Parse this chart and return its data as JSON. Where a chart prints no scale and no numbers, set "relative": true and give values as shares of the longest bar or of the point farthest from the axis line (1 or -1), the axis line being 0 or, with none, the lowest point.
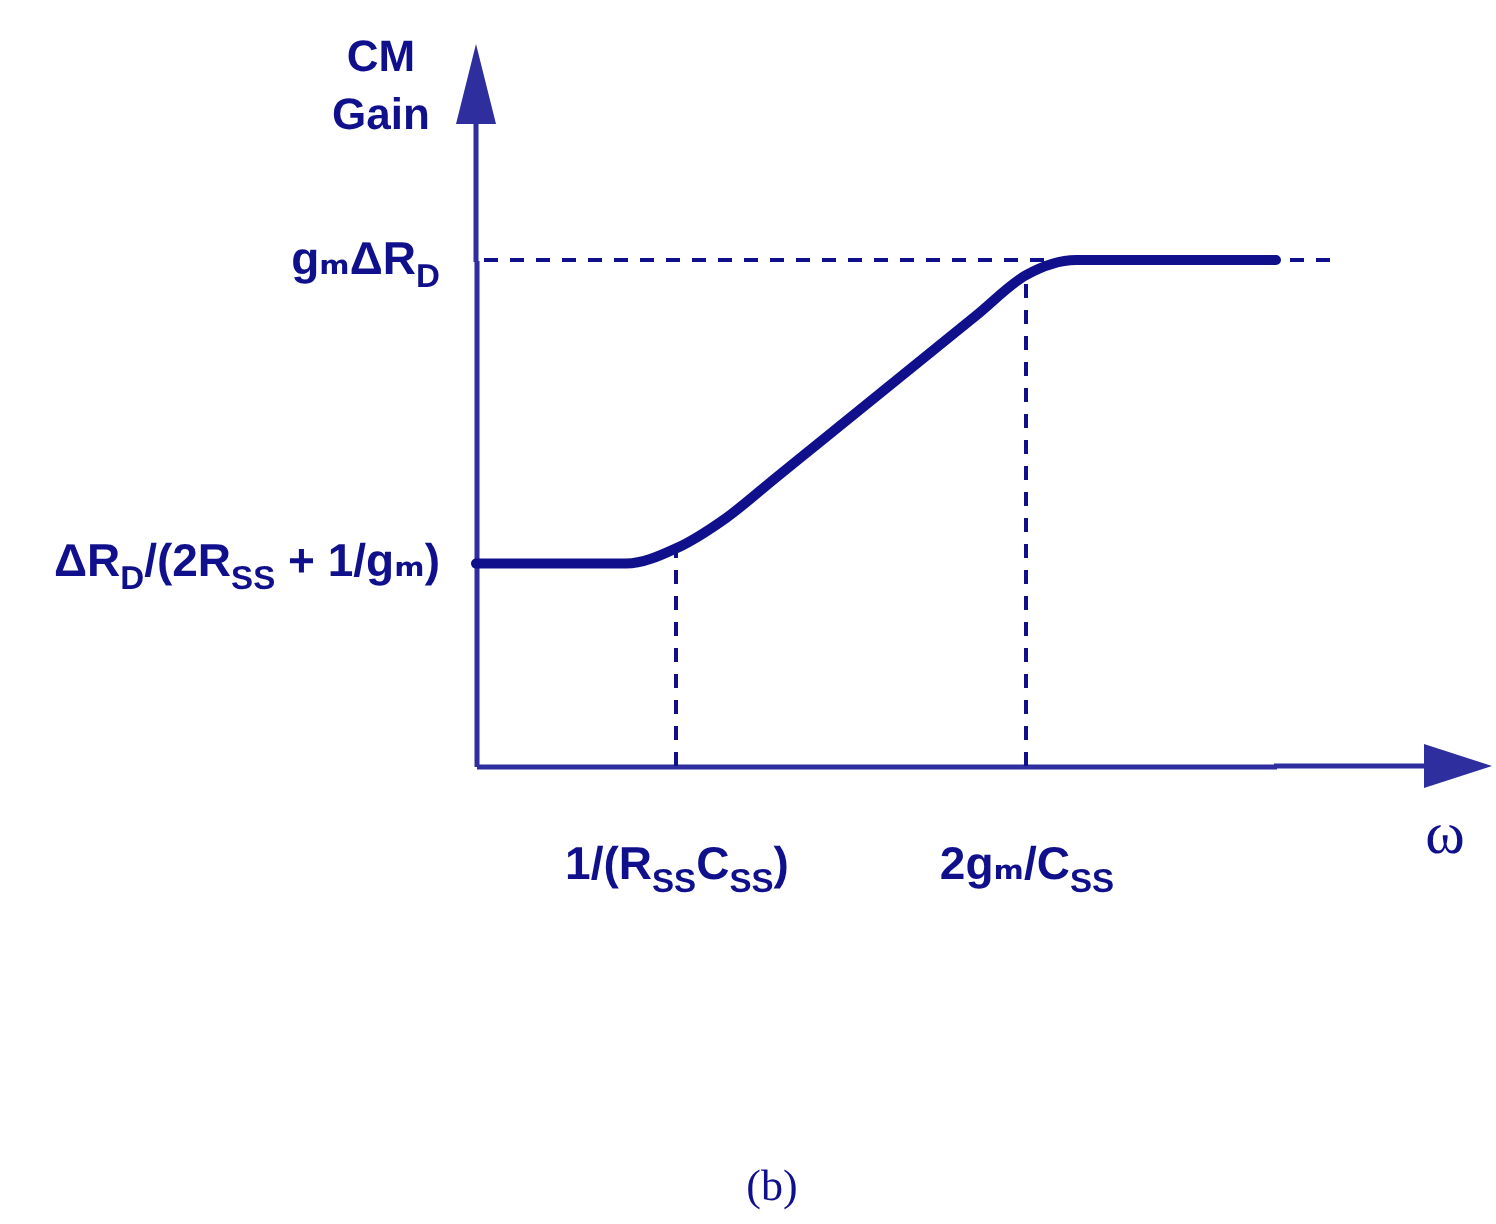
{
  "chart_data": {
    "type": "line",
    "xlabel": "ω",
    "ylabel": "CM Gain",
    "relative": true,
    "categories": [
      null,
      null,
      null,
      null,
      "1/(R$_{SS}$C$_{SS}$)",
      null,
      null,
      null,
      null,
      null,
      null,
      "2gₘ/C$_{SS}$",
      null,
      null,
      null,
      null,
      null
    ],
    "series": [
      {
        "color": "#10108c",
        "values": [
          0.4,
          0.4,
          0.4,
          0.4,
          0.43,
          0.49,
          0.57,
          0.65,
          0.73,
          0.81,
          0.89,
          0.97,
          1,
          1,
          1,
          1,
          1
        ]
      }
    ],
    "ref_lines": [
      {
        "axis": "y",
        "value": 1,
        "label": "gₘΔR$_{D}$",
        "line_style": "dashed",
        "color": "#10108c"
      },
      {
        "axis": "x",
        "value": "1/(R$_{SS}$C$_{SS}$)",
        "line_style": "dashed",
        "color": "#10108c"
      },
      {
        "axis": "x",
        "value": "2gₘ/C$_{SS}$",
        "line_style": "dashed",
        "color": "#10108c"
      }
    ],
    "annotations": [
      "ΔR$_{D}$/(2R$_{SS}$ + 1/gₘ)",
      "(b)"
    ]
  }
}
